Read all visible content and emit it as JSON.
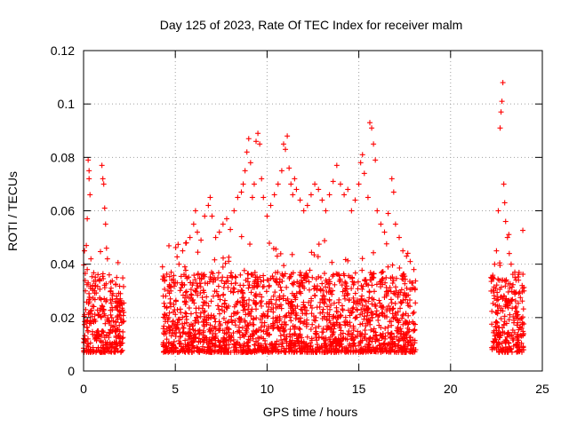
{
  "chart_data": {
    "type": "scatter",
    "title": "Day 125 of 2023, Rate Of TEC Index for receiver malm",
    "xlabel": "GPS time / hours",
    "ylabel": "ROTI / TECUs",
    "xlim": [
      0,
      25
    ],
    "ylim": [
      0,
      0.12
    ],
    "xticks": [
      0,
      5,
      10,
      15,
      20,
      25
    ],
    "xtick_labels": [
      "0",
      "5",
      "10",
      "15",
      "20",
      "25"
    ],
    "yticks": [
      0,
      0.02,
      0.04,
      0.06,
      0.08,
      0.1,
      0.12
    ],
    "ytick_labels": [
      "0",
      "0.02",
      "0.04",
      "0.06",
      "0.08",
      "0.1",
      "0.12"
    ],
    "grid": true,
    "marker": "+",
    "color": "#ff0000",
    "series": [
      {
        "name": "",
        "points": [
          [
            0.05,
            0.045
          ],
          [
            0.1,
            0.03
          ],
          [
            0.15,
            0.047
          ],
          [
            0.2,
            0.038
          ],
          [
            0.25,
            0.079
          ],
          [
            0.3,
            0.075
          ],
          [
            0.35,
            0.066
          ],
          [
            0.4,
            0.042
          ],
          [
            0.5,
            0.032
          ],
          [
            0.6,
            0.03
          ],
          [
            0.2,
            0.057
          ],
          [
            0.3,
            0.072
          ],
          [
            1.0,
            0.077
          ],
          [
            1.05,
            0.072
          ],
          [
            1.1,
            0.07
          ],
          [
            1.15,
            0.061
          ],
          [
            1.2,
            0.055
          ],
          [
            1.25,
            0.046
          ],
          [
            1.3,
            0.042
          ],
          [
            1.4,
            0.036
          ],
          [
            1.5,
            0.031
          ],
          [
            1.6,
            0.029
          ],
          [
            1.8,
            0.028
          ],
          [
            2.0,
            0.027
          ],
          [
            2.1,
            0.025
          ],
          [
            4.3,
            0.039
          ],
          [
            4.4,
            0.035
          ],
          [
            4.6,
            0.03
          ],
          [
            4.8,
            0.034
          ],
          [
            5.0,
            0.033
          ],
          [
            5.2,
            0.04
          ],
          [
            5.4,
            0.045
          ],
          [
            5.6,
            0.048
          ],
          [
            5.8,
            0.05
          ],
          [
            6.0,
            0.055
          ],
          [
            6.1,
            0.06
          ],
          [
            6.2,
            0.052
          ],
          [
            6.4,
            0.049
          ],
          [
            6.6,
            0.058
          ],
          [
            6.8,
            0.062
          ],
          [
            6.9,
            0.065
          ],
          [
            7.0,
            0.058
          ],
          [
            7.2,
            0.05
          ],
          [
            7.4,
            0.052
          ],
          [
            7.6,
            0.055
          ],
          [
            7.8,
            0.057
          ],
          [
            8.0,
            0.053
          ],
          [
            8.2,
            0.06
          ],
          [
            8.4,
            0.065
          ],
          [
            8.6,
            0.067
          ],
          [
            8.7,
            0.07
          ],
          [
            8.8,
            0.075
          ],
          [
            8.9,
            0.082
          ],
          [
            9.0,
            0.087
          ],
          [
            9.1,
            0.078
          ],
          [
            9.2,
            0.065
          ],
          [
            9.3,
            0.07
          ],
          [
            9.4,
            0.086
          ],
          [
            9.5,
            0.089
          ],
          [
            9.6,
            0.085
          ],
          [
            9.7,
            0.072
          ],
          [
            9.8,
            0.065
          ],
          [
            10.0,
            0.058
          ],
          [
            10.2,
            0.062
          ],
          [
            10.4,
            0.066
          ],
          [
            10.6,
            0.07
          ],
          [
            10.8,
            0.075
          ],
          [
            10.9,
            0.085
          ],
          [
            11.0,
            0.083
          ],
          [
            11.1,
            0.088
          ],
          [
            11.2,
            0.076
          ],
          [
            11.3,
            0.07
          ],
          [
            11.4,
            0.066
          ],
          [
            11.5,
            0.072
          ],
          [
            11.6,
            0.068
          ],
          [
            11.8,
            0.064
          ],
          [
            12.0,
            0.06
          ],
          [
            12.2,
            0.062
          ],
          [
            12.4,
            0.066
          ],
          [
            12.6,
            0.07
          ],
          [
            12.8,
            0.068
          ],
          [
            13.0,
            0.064
          ],
          [
            13.2,
            0.06
          ],
          [
            13.4,
            0.066
          ],
          [
            13.6,
            0.071
          ],
          [
            13.8,
            0.077
          ],
          [
            14.0,
            0.07
          ],
          [
            14.2,
            0.066
          ],
          [
            14.4,
            0.068
          ],
          [
            14.6,
            0.06
          ],
          [
            14.8,
            0.064
          ],
          [
            15.0,
            0.07
          ],
          [
            15.1,
            0.078
          ],
          [
            15.2,
            0.081
          ],
          [
            15.3,
            0.074
          ],
          [
            15.5,
            0.065
          ],
          [
            15.6,
            0.093
          ],
          [
            15.7,
            0.091
          ],
          [
            15.8,
            0.085
          ],
          [
            15.9,
            0.079
          ],
          [
            16.0,
            0.06
          ],
          [
            16.2,
            0.055
          ],
          [
            16.4,
            0.052
          ],
          [
            16.6,
            0.059
          ],
          [
            16.8,
            0.072
          ],
          [
            16.9,
            0.067
          ],
          [
            17.0,
            0.055
          ],
          [
            17.2,
            0.05
          ],
          [
            17.4,
            0.045
          ],
          [
            17.6,
            0.043
          ],
          [
            17.8,
            0.041
          ],
          [
            18.0,
            0.038
          ],
          [
            22.2,
            0.035
          ],
          [
            22.4,
            0.04
          ],
          [
            22.5,
            0.045
          ],
          [
            22.6,
            0.06
          ],
          [
            22.7,
            0.091
          ],
          [
            22.75,
            0.097
          ],
          [
            22.8,
            0.101
          ],
          [
            22.85,
            0.108
          ],
          [
            22.9,
            0.07
          ],
          [
            22.95,
            0.063
          ],
          [
            23.0,
            0.056
          ],
          [
            23.1,
            0.05
          ],
          [
            23.2,
            0.044
          ],
          [
            23.3,
            0.04
          ],
          [
            23.5,
            0.037
          ],
          [
            23.7,
            0.034
          ],
          [
            23.9,
            0.032
          ],
          [
            24.0,
            0.03
          ]
        ]
      }
    ]
  }
}
